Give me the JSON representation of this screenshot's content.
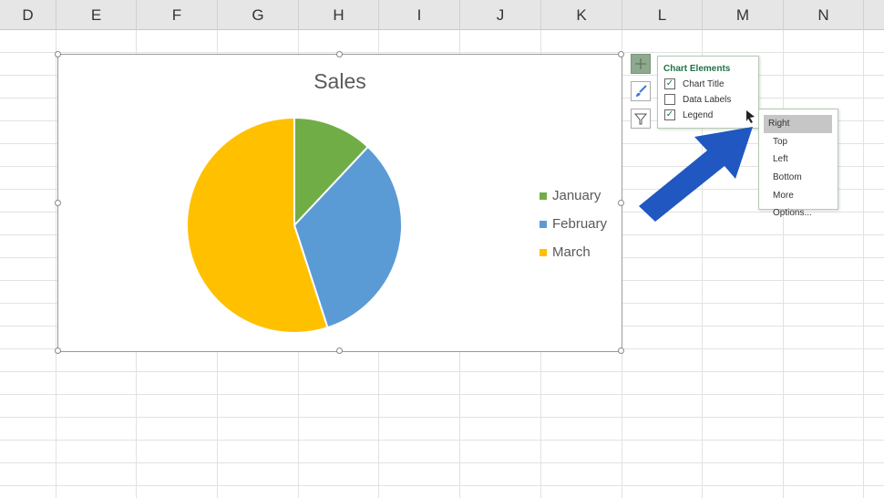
{
  "columns": [
    "D",
    "E",
    "F",
    "G",
    "H",
    "I",
    "J",
    "K",
    "L",
    "M",
    "N"
  ],
  "chart": {
    "title": "Sales"
  },
  "chart_data": {
    "type": "pie",
    "title": "Sales",
    "categories": [
      "January",
      "February",
      "March"
    ],
    "values": [
      12,
      33,
      55
    ],
    "colors": [
      "#70ad47",
      "#5b9bd5",
      "#ffc000"
    ],
    "legend_position": "right"
  },
  "chart_elements": {
    "title": "Chart Elements",
    "items": [
      {
        "label": "Chart Title",
        "checked": true
      },
      {
        "label": "Data Labels",
        "checked": false
      },
      {
        "label": "Legend",
        "checked": true
      }
    ]
  },
  "legend_menu": {
    "options": [
      "Right",
      "Top",
      "Left",
      "Bottom",
      "More Options..."
    ],
    "selected": "Right"
  },
  "icons": {
    "add": "plus-icon",
    "styles": "paintbrush-icon",
    "filter": "funnel-icon"
  }
}
